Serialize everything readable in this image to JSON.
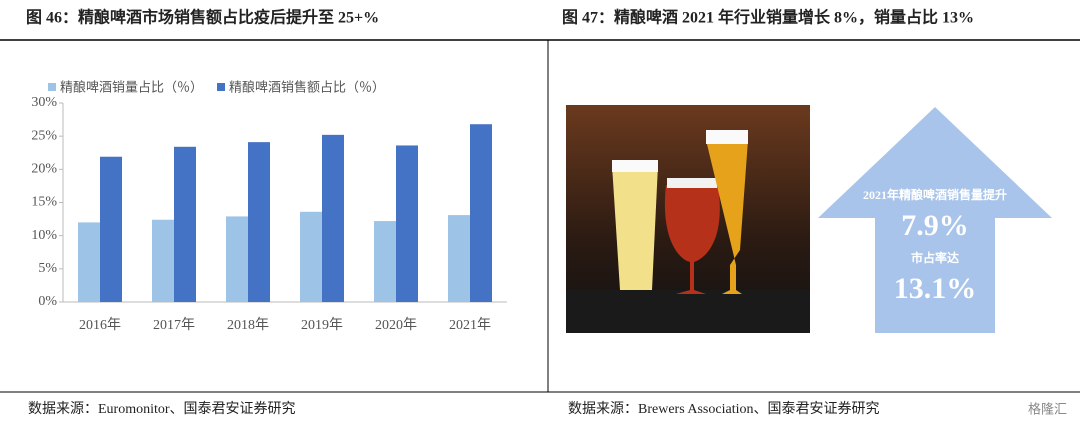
{
  "left_title": "图 46：精酿啤酒市场销售额占比疫后提升至 25+%",
  "right_title": "图 47：精酿啤酒 2021 年行业销量增长 8%，销量占比 13%",
  "chart_data": {
    "type": "bar",
    "categories": [
      "2016年",
      "2017年",
      "2018年",
      "2019年",
      "2020年",
      "2021年"
    ],
    "series": [
      {
        "name": "精酿啤酒销量占比（％）",
        "color": "#9dc3e6",
        "values": [
          12.0,
          12.4,
          12.9,
          13.6,
          12.2,
          13.1
        ]
      },
      {
        "name": "精酿啤酒销售额占比（％）",
        "color": "#4472c4",
        "values": [
          21.9,
          23.4,
          24.1,
          25.2,
          23.6,
          26.8
        ]
      }
    ],
    "ylim": [
      0,
      30
    ],
    "yticks": [
      {
        "value": 0,
        "label": "0%"
      },
      {
        "value": 5,
        "label": "5%"
      },
      {
        "value": 10,
        "label": "10%"
      },
      {
        "value": 15,
        "label": "15%"
      },
      {
        "value": 20,
        "label": "20%"
      },
      {
        "value": 25,
        "label": "25%"
      },
      {
        "value": 30,
        "label": "30%"
      }
    ],
    "grid": false,
    "legend": "top"
  },
  "arrow": {
    "line1": "2021年精酿啤酒销售量提升",
    "value1": "7.9%",
    "line2": "市占率达",
    "value2": "13.1%"
  },
  "left_source": "数据来源：Euromonitor、国泰君安证券研究",
  "right_source": "数据来源：Brewers Association、国泰君安证券研究",
  "watermark": "格隆汇"
}
